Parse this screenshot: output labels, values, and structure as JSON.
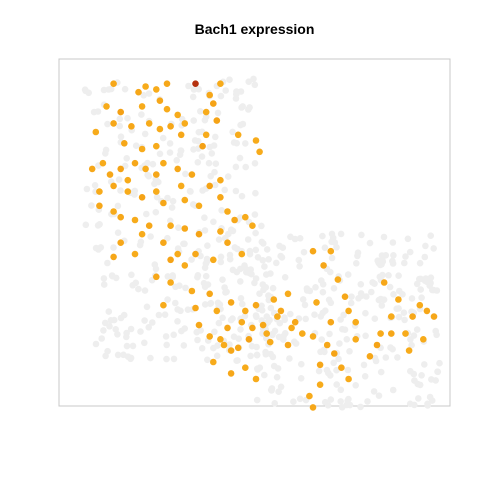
{
  "chart_data": {
    "type": "scatter",
    "title": "Bach1 expression",
    "xlabel": "",
    "ylabel": "",
    "grid": false,
    "legend": "none",
    "axes_visible": false,
    "xlim": [
      0,
      100
    ],
    "ylim": [
      0,
      100
    ],
    "color_scale": {
      "zero": "#eeeeee",
      "low": "#fdc128",
      "mid": "#f39c12",
      "high": "#b5310f"
    },
    "seed": 7,
    "background_counts": {
      "left_arm": 150,
      "right_arm": 190,
      "lower_right": 260
    },
    "expressing_cells": [
      [
        10,
        98,
        0.35
      ],
      [
        17,
        95,
        0.35
      ],
      [
        19,
        97,
        0.3
      ],
      [
        22,
        96,
        0.3
      ],
      [
        25,
        98,
        0.35
      ],
      [
        33,
        98,
        1.0
      ],
      [
        40,
        98,
        0.3
      ],
      [
        8,
        90,
        0.3
      ],
      [
        12,
        88,
        0.45
      ],
      [
        18,
        90,
        0.3
      ],
      [
        23,
        92,
        0.35
      ],
      [
        25,
        89,
        0.3
      ],
      [
        28,
        87,
        0.3
      ],
      [
        36,
        88,
        0.3
      ],
      [
        37,
        94,
        0.35
      ],
      [
        38,
        91,
        0.4
      ],
      [
        5,
        81,
        0.3
      ],
      [
        10,
        84,
        0.35
      ],
      [
        15,
        83,
        0.35
      ],
      [
        20,
        84,
        0.3
      ],
      [
        23,
        82,
        0.3
      ],
      [
        26,
        83,
        0.35
      ],
      [
        29,
        80,
        0.35
      ],
      [
        30,
        84,
        0.3
      ],
      [
        39,
        85,
        0.4
      ],
      [
        45,
        80,
        0.3
      ],
      [
        13,
        77,
        0.35
      ],
      [
        18,
        75,
        0.3
      ],
      [
        22,
        76,
        0.3
      ],
      [
        35,
        76,
        0.45
      ],
      [
        36,
        80,
        0.3
      ],
      [
        50,
        78,
        0.3
      ],
      [
        51,
        74,
        0.3
      ],
      [
        4,
        68,
        0.35
      ],
      [
        7,
        70,
        0.3
      ],
      [
        9,
        66,
        0.35
      ],
      [
        12,
        68,
        0.4
      ],
      [
        14,
        64,
        0.3
      ],
      [
        16,
        70,
        0.35
      ],
      [
        19,
        68,
        0.3
      ],
      [
        22,
        66,
        0.35
      ],
      [
        24,
        70,
        0.3
      ],
      [
        28,
        68,
        0.35
      ],
      [
        29,
        62,
        0.3
      ],
      [
        32,
        66,
        0.35
      ],
      [
        37,
        62,
        0.4
      ],
      [
        40,
        64,
        0.3
      ],
      [
        6,
        60,
        0.3
      ],
      [
        10,
        62,
        0.35
      ],
      [
        14,
        60,
        0.3
      ],
      [
        18,
        58,
        0.4
      ],
      [
        22,
        60,
        0.3
      ],
      [
        24,
        56,
        0.35
      ],
      [
        30,
        57,
        0.3
      ],
      [
        34,
        55,
        0.3
      ],
      [
        40,
        58,
        0.35
      ],
      [
        42,
        53,
        0.3
      ],
      [
        6,
        55,
        0.35
      ],
      [
        10,
        53,
        0.3
      ],
      [
        12,
        51,
        0.35
      ],
      [
        16,
        50,
        0.3
      ],
      [
        20,
        48,
        0.35
      ],
      [
        26,
        48,
        0.3
      ],
      [
        30,
        47,
        0.35
      ],
      [
        34,
        45,
        0.4
      ],
      [
        40,
        46,
        0.3
      ],
      [
        44,
        50,
        0.35
      ],
      [
        47,
        51,
        0.3
      ],
      [
        49,
        48,
        0.3
      ],
      [
        12,
        42,
        0.35
      ],
      [
        18,
        45,
        0.3
      ],
      [
        24,
        42,
        0.35
      ],
      [
        28,
        38,
        0.3
      ],
      [
        33,
        38,
        0.35
      ],
      [
        38,
        36,
        0.3
      ],
      [
        42,
        42,
        0.35
      ],
      [
        46,
        38,
        0.3
      ],
      [
        10,
        37,
        0.35
      ],
      [
        16,
        38,
        0.3
      ],
      [
        26,
        36,
        0.4
      ],
      [
        30,
        34,
        0.3
      ],
      [
        22,
        30,
        0.35
      ],
      [
        26,
        28,
        0.3
      ],
      [
        32,
        25,
        0.3
      ],
      [
        37,
        24,
        0.35
      ],
      [
        24,
        20,
        0.3
      ],
      [
        33,
        19,
        0.35
      ],
      [
        39,
        18,
        0.3
      ],
      [
        43,
        21,
        0.35
      ],
      [
        47,
        18,
        0.3
      ],
      [
        50,
        20,
        0.35
      ],
      [
        55,
        22,
        0.3
      ],
      [
        57,
        18,
        0.35
      ],
      [
        59,
        24,
        0.3
      ],
      [
        46,
        14,
        0.3
      ],
      [
        49,
        12,
        0.35
      ],
      [
        53,
        10,
        0.3
      ],
      [
        56,
        16,
        0.3
      ],
      [
        61,
        14,
        0.35
      ],
      [
        63,
        10,
        0.3
      ],
      [
        40,
        8,
        0.3
      ],
      [
        42,
        12,
        0.35
      ],
      [
        45,
        5,
        0.35
      ],
      [
        48,
        8,
        0.4
      ],
      [
        52,
        13,
        0.35
      ],
      [
        54,
        7,
        0.3
      ],
      [
        59,
        6,
        0.35
      ],
      [
        60,
        12,
        0.3
      ],
      [
        34,
        13,
        0.35
      ],
      [
        37,
        9,
        0.3
      ],
      [
        41,
        6,
        0.3
      ],
      [
        43,
        4,
        0.35
      ],
      [
        47,
        -2,
        0.3
      ],
      [
        38,
        0,
        0.3
      ],
      [
        43,
        -4,
        0.35
      ],
      [
        50,
        -6,
        0.3
      ],
      [
        66,
        39,
        0.35
      ],
      [
        71,
        39,
        0.3
      ],
      [
        69,
        34,
        0.35
      ],
      [
        73,
        29,
        0.3
      ],
      [
        75,
        23,
        0.35
      ],
      [
        76,
        18,
        0.3
      ],
      [
        78,
        14,
        0.3
      ],
      [
        71,
        14,
        0.35
      ],
      [
        67,
        21,
        0.3
      ],
      [
        66,
        9,
        0.3
      ],
      [
        70,
        6,
        0.35
      ],
      [
        72,
        3,
        0.4
      ],
      [
        74,
        -2,
        0.35
      ],
      [
        76,
        -6,
        0.3
      ],
      [
        68,
        -1,
        0.35
      ],
      [
        65,
        -12,
        0.3
      ],
      [
        66,
        -16,
        0.35
      ],
      [
        68,
        -8,
        0.3
      ],
      [
        86,
        28,
        0.35
      ],
      [
        88,
        16,
        0.3
      ],
      [
        88,
        10,
        0.35
      ],
      [
        90,
        22,
        0.3
      ],
      [
        92,
        10,
        0.3
      ],
      [
        94,
        16,
        0.35
      ],
      [
        96,
        20,
        0.3
      ],
      [
        98,
        18,
        0.35
      ],
      [
        97,
        8,
        0.3
      ],
      [
        100,
        16,
        0.35
      ],
      [
        78,
        8,
        0.3
      ],
      [
        82,
        2,
        0.35
      ],
      [
        84,
        6,
        0.4
      ],
      [
        85,
        10,
        0.3
      ],
      [
        93,
        4,
        0.3
      ]
    ]
  }
}
